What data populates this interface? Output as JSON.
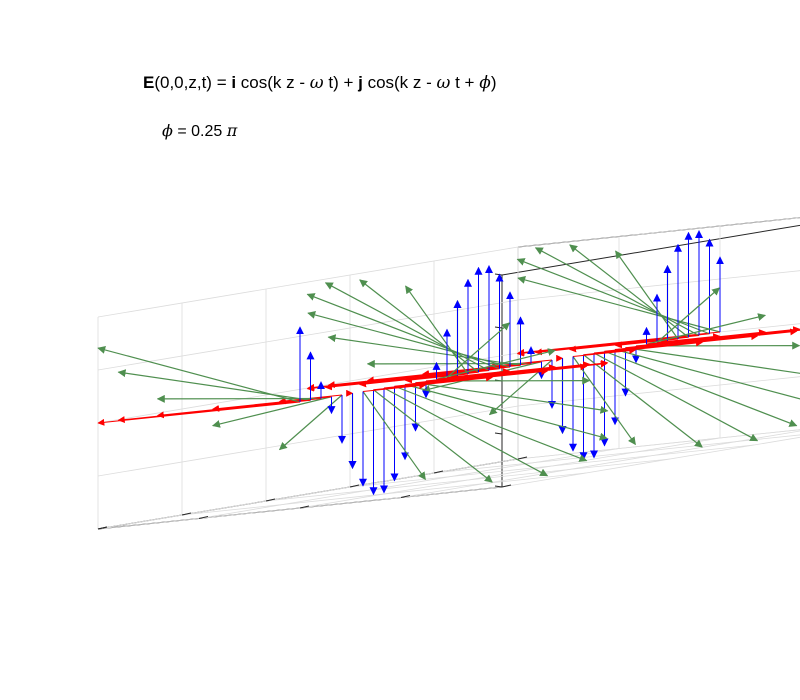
{
  "figure": {
    "title_parts": {
      "E": "E",
      "args": "(0,0,z,t) = ",
      "i": "i",
      "term1": " cos(k z - ",
      "omega1": "ω",
      "term1b": " t) + ",
      "j": "j",
      "term2": " cos(k z - ",
      "omega2": "ω",
      "term2b": " t  +  ",
      "phi": "ϕ",
      "close": ")"
    },
    "phase_annotation": {
      "symbol": "ϕ",
      "equals": " = 0.25 ",
      "pi": "π"
    }
  },
  "chart_data": {
    "type": "quiver3d",
    "title": "E(0,0,z,t) = i cos(k z - ω t) + j cos(k z - ω t + ϕ)",
    "annotation": "ϕ = 0.25 π",
    "phase_over_pi": 0.25,
    "z_range": [
      0,
      2
    ],
    "wavelength": 1,
    "samples": 41,
    "xlim": [
      -1,
      1
    ],
    "ylim": [
      -1,
      1
    ],
    "zlim": [
      0,
      2
    ],
    "grid": true,
    "tick_labels_shown": false,
    "series": [
      {
        "name": "",
        "component": "x",
        "formula": "cos(2*pi*z)",
        "color": "#ff0000"
      },
      {
        "name": "",
        "component": "y",
        "formula": "cos(2*pi*z + phi)",
        "color": "#0000ff"
      },
      {
        "name": "",
        "component": "xy",
        "formula": "total E",
        "color": "#4f8f4f"
      }
    ]
  }
}
